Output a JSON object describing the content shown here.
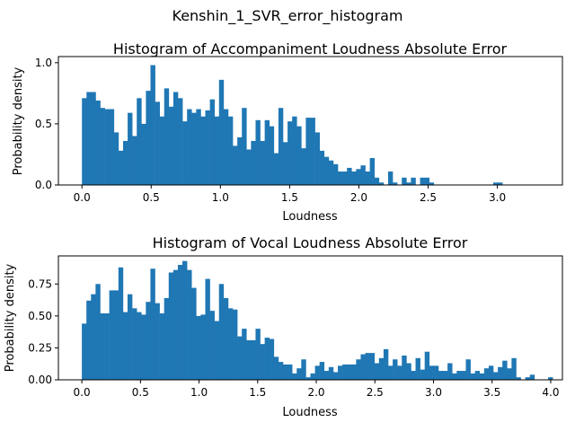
{
  "figure": {
    "suptitle": "Kenshin_1_SVR_error_histogram"
  },
  "chart_data": [
    {
      "type": "bar",
      "title": "Histogram of Accompaniment Loudness Absolute Error",
      "xlabel": "Loudness",
      "ylabel": "Probability density",
      "xlim": [
        -0.17,
        3.47
      ],
      "ylim": [
        0,
        1.05
      ],
      "xticks": [
        "0.0",
        "0.5",
        "1.0",
        "1.5",
        "2.0",
        "2.5",
        "3.0"
      ],
      "yticks": [
        "0.0",
        "0.5",
        "1.0"
      ],
      "bar_color": "#1f77b4",
      "bin_start": 0.0,
      "bin_width": 0.033,
      "values": [
        0.71,
        0.76,
        0.76,
        0.69,
        0.63,
        0.62,
        0.62,
        0.43,
        0.28,
        0.36,
        0.59,
        0.4,
        0.71,
        0.5,
        0.77,
        0.98,
        0.68,
        0.56,
        0.79,
        0.64,
        0.76,
        0.71,
        0.52,
        0.62,
        0.59,
        0.62,
        0.56,
        0.61,
        0.7,
        0.56,
        0.86,
        0.62,
        0.56,
        0.32,
        0.39,
        0.63,
        0.29,
        0.36,
        0.53,
        0.36,
        0.53,
        0.48,
        0.26,
        0.63,
        0.35,
        0.52,
        0.56,
        0.48,
        0.3,
        0.55,
        0.55,
        0.43,
        0.28,
        0.23,
        0.2,
        0.17,
        0.11,
        0.11,
        0.14,
        0.11,
        0.13,
        0.16,
        0.11,
        0.22,
        0.06,
        0.02,
        0.0,
        0.11,
        0.02,
        0.0,
        0.06,
        0.02,
        0.06,
        0.0,
        0.06,
        0.06,
        0.02,
        0.0,
        0.0,
        0.0,
        0.0,
        0.0,
        0.0,
        0.0,
        0.0,
        0.0,
        0.0,
        0.0,
        0.0,
        0.0,
        0.02,
        0.02,
        0.0,
        0.0,
        0.0,
        0.0,
        0.0,
        0.0,
        0.0,
        0.0,
        0.0,
        0.0,
        0.0,
        0.0,
        0.0,
        0.0,
        0.0,
        0.0,
        0.0,
        0.02,
        0.0,
        0.0,
        0.0,
        0.0,
        0.0,
        0.0,
        0.0,
        0.0,
        0.0,
        0.0,
        0.0,
        0.0,
        0.0,
        0.0,
        0.0,
        0.0,
        0.0,
        0.0,
        0.0,
        0.0,
        0.0,
        0.0,
        0.0,
        0.0,
        0.02,
        0.0,
        0.0,
        0.0,
        0.0,
        0.0,
        0.0,
        0.0,
        0.0,
        0.0,
        0.0,
        0.0,
        0.0,
        0.0,
        0.0,
        0.0,
        0.0,
        0.0,
        0.0,
        0.0,
        0.0,
        0.0,
        0.0,
        0.0,
        0.0,
        0.0,
        0.0,
        0.0,
        0.0,
        0.0,
        0.0,
        0.0,
        0.0,
        0.0,
        0.0,
        0.0,
        0.0,
        0.0,
        0.0,
        0.0,
        0.0,
        0.0,
        0.0,
        0.0,
        0.0,
        0.0,
        0.0,
        0.0,
        0.0,
        0.0,
        0.0,
        0.0,
        0.0,
        0.0,
        0.0,
        0.0,
        0.0
      ]
    },
    {
      "type": "bar",
      "title": "Histogram of Vocal Loudness Absolute Error",
      "xlabel": "Loudness",
      "ylabel": "Probability density",
      "xlim": [
        -0.2,
        4.1
      ],
      "ylim": [
        0,
        0.97
      ],
      "xticks": [
        "0.0",
        "0.5",
        "1.0",
        "1.5",
        "2.0",
        "2.5",
        "3.0",
        "3.5",
        "4.0"
      ],
      "yticks": [
        "0.00",
        "0.25",
        "0.50",
        "0.75"
      ],
      "bar_color": "#1f77b4",
      "bin_start": 0.0,
      "bin_width": 0.039,
      "values": [
        0.44,
        0.62,
        0.67,
        0.75,
        0.52,
        0.52,
        0.7,
        0.7,
        0.88,
        0.53,
        0.67,
        0.56,
        0.53,
        0.51,
        0.61,
        0.87,
        0.6,
        0.52,
        0.64,
        0.84,
        0.86,
        0.9,
        0.93,
        0.86,
        0.72,
        0.5,
        0.51,
        0.79,
        0.54,
        0.46,
        0.75,
        0.64,
        0.56,
        0.55,
        0.34,
        0.4,
        0.31,
        0.31,
        0.4,
        0.28,
        0.33,
        0.32,
        0.18,
        0.14,
        0.12,
        0.12,
        0.05,
        0.09,
        0.16,
        0.02,
        0.05,
        0.11,
        0.14,
        0.07,
        0.1,
        0.06,
        0.11,
        0.12,
        0.12,
        0.12,
        0.16,
        0.2,
        0.21,
        0.21,
        0.13,
        0.17,
        0.24,
        0.11,
        0.16,
        0.11,
        0.19,
        0.13,
        0.07,
        0.17,
        0.08,
        0.22,
        0.11,
        0.11,
        0.07,
        0.07,
        0.13,
        0.05,
        0.07,
        0.07,
        0.16,
        0.05,
        0.07,
        0.05,
        0.09,
        0.11,
        0.06,
        0.1,
        0.15,
        0.09,
        0.17,
        0.02,
        0.0,
        0.02,
        0.04,
        0.0,
        0.0,
        0.0,
        0.02,
        0.0,
        0.0,
        0.0,
        0.0,
        0.0,
        0.0,
        0.0,
        0.0,
        0.0,
        0.0,
        0.0,
        0.0,
        0.0,
        0.0,
        0.0,
        0.0,
        0.0,
        0.0,
        0.0,
        0.0,
        0.0,
        0.0,
        0.0,
        0.0,
        0.0,
        0.0,
        0.0,
        0.0,
        0.0,
        0.0,
        0.0,
        0.0,
        0.0,
        0.0,
        0.0,
        0.0,
        0.0,
        0.0,
        0.0,
        0.0,
        0.0,
        0.0,
        0.0,
        0.0,
        0.0,
        0.0,
        0.0,
        0.0,
        0.0,
        0.0,
        0.0,
        0.0,
        0.0,
        0.0,
        0.0,
        0.0,
        0.0,
        0.0,
        0.0,
        0.0,
        0.0,
        0.0,
        0.0,
        0.0,
        0.0,
        0.0,
        0.0,
        0.0,
        0.0,
        0.0,
        0.0,
        0.0,
        0.0,
        0.0,
        0.0,
        0.0,
        0.0,
        0.0,
        0.0,
        0.0,
        0.0,
        0.0,
        0.0,
        0.0,
        0.0,
        0.0,
        0.0,
        0.0,
        0.0,
        0.0,
        0.0,
        0.0,
        0.0,
        0.0
      ]
    }
  ]
}
